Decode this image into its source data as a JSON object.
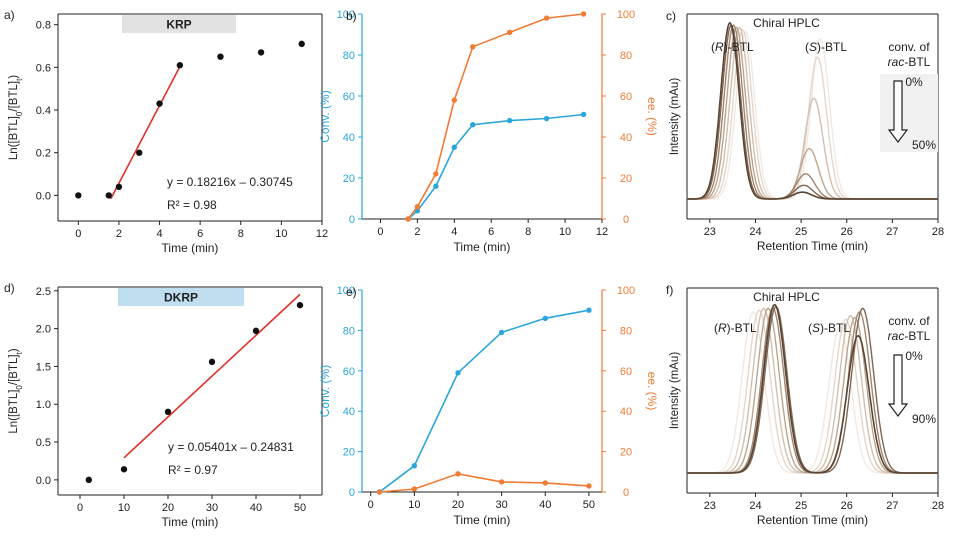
{
  "colors": {
    "axis": "#222222",
    "fit": "#e0302a",
    "conv": "#2aa6dc",
    "ee": "#f07b33",
    "krp_badge": "#e2e2e2",
    "dkrp_badge": "#bfdff1",
    "hplc_arrow_bg": "#f1f1f1",
    "hplc_traces": [
      "#f1e9e2",
      "#e6d6ca",
      "#d3bfae",
      "#bca58f",
      "#a18771",
      "#806653",
      "#5a4433"
    ]
  },
  "chart_data": [
    {
      "id": "a",
      "type": "scatter",
      "panel_label": "a)",
      "badge": "KRP",
      "xlabel": "Time (min)",
      "ylabel": "Ln([BTL]0/[BTL]t)",
      "xlim": [
        -1,
        12
      ],
      "ylim": [
        -0.12,
        0.85
      ],
      "xticks": [
        0,
        2,
        4,
        6,
        8,
        10,
        12
      ],
      "yticks": [
        0.0,
        0.2,
        0.4,
        0.6,
        0.8
      ],
      "ytick_labels": [
        "0.0",
        "0.2",
        "0.4",
        "0.6",
        "0.8"
      ],
      "x": [
        0,
        1.5,
        2,
        3,
        4,
        5,
        7,
        9,
        11
      ],
      "y": [
        0.0,
        0.0,
        0.04,
        0.2,
        0.43,
        0.61,
        0.65,
        0.67,
        0.71
      ],
      "fit": {
        "slope": 0.18216,
        "intercept": -0.30745,
        "x_range": [
          1.6,
          5.1
        ]
      },
      "equation": "y = 0.18216x – 0.30745",
      "r2": "R² = 0.98"
    },
    {
      "id": "b",
      "type": "line",
      "panel_label": "b)",
      "xlabel": "Time (min)",
      "ylabel_left": "Conv. (%)",
      "ylabel_right": "ee. (%)",
      "xlim": [
        -1,
        12
      ],
      "ylim": [
        0,
        100
      ],
      "xticks": [
        0,
        2,
        4,
        6,
        8,
        10,
        12
      ],
      "yticks": [
        0,
        20,
        40,
        60,
        80,
        100
      ],
      "series": [
        {
          "name": "Conv. (%)",
          "color_key": "conv",
          "axis": "left",
          "x": [
            1.5,
            2,
            3,
            4,
            5,
            7,
            9,
            11
          ],
          "y": [
            0,
            4,
            16,
            35,
            46,
            48,
            49,
            51
          ]
        },
        {
          "name": "ee. (%)",
          "color_key": "ee",
          "axis": "right",
          "x": [
            1.5,
            2,
            3,
            4,
            5,
            7,
            9,
            11
          ],
          "y": [
            0,
            6,
            22,
            58,
            84,
            91,
            98,
            100
          ]
        }
      ]
    },
    {
      "id": "c",
      "type": "line",
      "panel_label": "c)",
      "title": "Chiral HPLC",
      "xlabel": "Retention Time (min)",
      "ylabel": "Intensity (mAu)",
      "xlim": [
        22.5,
        28
      ],
      "xticks": [
        23,
        24,
        25,
        26,
        27,
        28
      ],
      "ymax": 80,
      "peak_labels": [
        {
          "prefix": "(",
          "italic": "R",
          "suffix": ")-BTL"
        },
        {
          "prefix": "(",
          "italic": "S",
          "suffix": ")-BTL"
        }
      ],
      "legend": {
        "line1": "conv. of",
        "line2_italic": "rac",
        "line2_rest": "-BTL",
        "start": "0%",
        "end": "50%"
      },
      "sigma": 0.2,
      "traces": [
        {
          "r_center": 23.78,
          "r_height": 73,
          "s_center": 25.42,
          "s_height": 70
        },
        {
          "r_center": 23.72,
          "r_height": 74,
          "s_center": 25.36,
          "s_height": 62
        },
        {
          "r_center": 23.65,
          "r_height": 75,
          "s_center": 25.28,
          "s_height": 44
        },
        {
          "r_center": 23.58,
          "r_height": 75,
          "s_center": 25.18,
          "s_height": 22
        },
        {
          "r_center": 23.52,
          "r_height": 76,
          "s_center": 25.1,
          "s_height": 11
        },
        {
          "r_center": 23.47,
          "r_height": 76,
          "s_center": 25.06,
          "s_height": 6
        },
        {
          "r_center": 23.44,
          "r_height": 77,
          "s_center": 25.03,
          "s_height": 3
        }
      ]
    },
    {
      "id": "d",
      "type": "scatter",
      "panel_label": "d)",
      "badge": "DKRP",
      "xlabel": "Time (min)",
      "ylabel": "Ln([BTL]0/[BTL]t)",
      "xlim": [
        -5,
        55
      ],
      "ylim": [
        -0.2,
        2.55
      ],
      "xticks": [
        0,
        10,
        20,
        30,
        40,
        50
      ],
      "yticks": [
        0.0,
        0.5,
        1.0,
        1.5,
        2.0,
        2.5
      ],
      "ytick_labels": [
        "0.0",
        "0.5",
        "1.0",
        "1.5",
        "2.0",
        "2.5"
      ],
      "x": [
        2,
        10,
        20,
        30,
        40,
        50
      ],
      "y": [
        0.0,
        0.14,
        0.9,
        1.56,
        1.97,
        2.31
      ],
      "fit": {
        "slope": 0.05401,
        "intercept": -0.24831,
        "x_range": [
          10,
          50
        ]
      },
      "equation": "y = 0.05401x – 0.24831",
      "r2": "R² = 0.97"
    },
    {
      "id": "e",
      "type": "line",
      "panel_label": "e)",
      "xlabel": "Time (min)",
      "ylabel_left": "Conv. (%)",
      "ylabel_right": "ee. (%)",
      "xlim": [
        -2,
        53
      ],
      "ylim": [
        0,
        100
      ],
      "xticks": [
        0,
        10,
        20,
        30,
        40,
        50
      ],
      "yticks": [
        0,
        20,
        40,
        60,
        80,
        100
      ],
      "series": [
        {
          "name": "Conv. (%)",
          "color_key": "conv",
          "axis": "left",
          "x": [
            2,
            10,
            20,
            30,
            40,
            50
          ],
          "y": [
            0,
            13,
            59,
            79,
            86,
            90
          ]
        },
        {
          "name": "ee. (%)",
          "color_key": "ee",
          "axis": "right",
          "x": [
            2,
            10,
            20,
            30,
            40,
            50
          ],
          "y": [
            0,
            1.5,
            9,
            5,
            4.5,
            3
          ]
        }
      ]
    },
    {
      "id": "f",
      "type": "line",
      "panel_label": "f)",
      "title": "Chiral HPLC",
      "xlabel": "Retention Time (min)",
      "ylabel": "Intensity (mAu)",
      "xlim": [
        22.5,
        28
      ],
      "xticks": [
        23,
        24,
        25,
        26,
        27,
        28
      ],
      "ymax": 100,
      "peak_labels": [
        {
          "prefix": "(",
          "italic": "R",
          "suffix": ")-BTL"
        },
        {
          "prefix": "(",
          "italic": "S",
          "suffix": ")-BTL"
        }
      ],
      "legend": {
        "line1": "conv. of",
        "line2_italic": "rac",
        "line2_rest": "-BTL",
        "start": "0%",
        "end": "90%"
      },
      "sigma": 0.24,
      "traces": [
        {
          "r_center": 23.95,
          "r_height": 88,
          "s_center": 25.85,
          "s_height": 80
        },
        {
          "r_center": 24.08,
          "r_height": 89,
          "s_center": 25.98,
          "s_height": 84
        },
        {
          "r_center": 24.18,
          "r_height": 90,
          "s_center": 26.08,
          "s_height": 86
        },
        {
          "r_center": 24.28,
          "r_height": 90,
          "s_center": 26.18,
          "s_height": 85
        },
        {
          "r_center": 24.38,
          "r_height": 90,
          "s_center": 26.28,
          "s_height": 88
        },
        {
          "r_center": 24.45,
          "r_height": 91,
          "s_center": 26.35,
          "s_height": 90
        },
        {
          "r_center": 24.42,
          "r_height": 92,
          "s_center": 26.25,
          "s_height": 75
        }
      ]
    }
  ]
}
